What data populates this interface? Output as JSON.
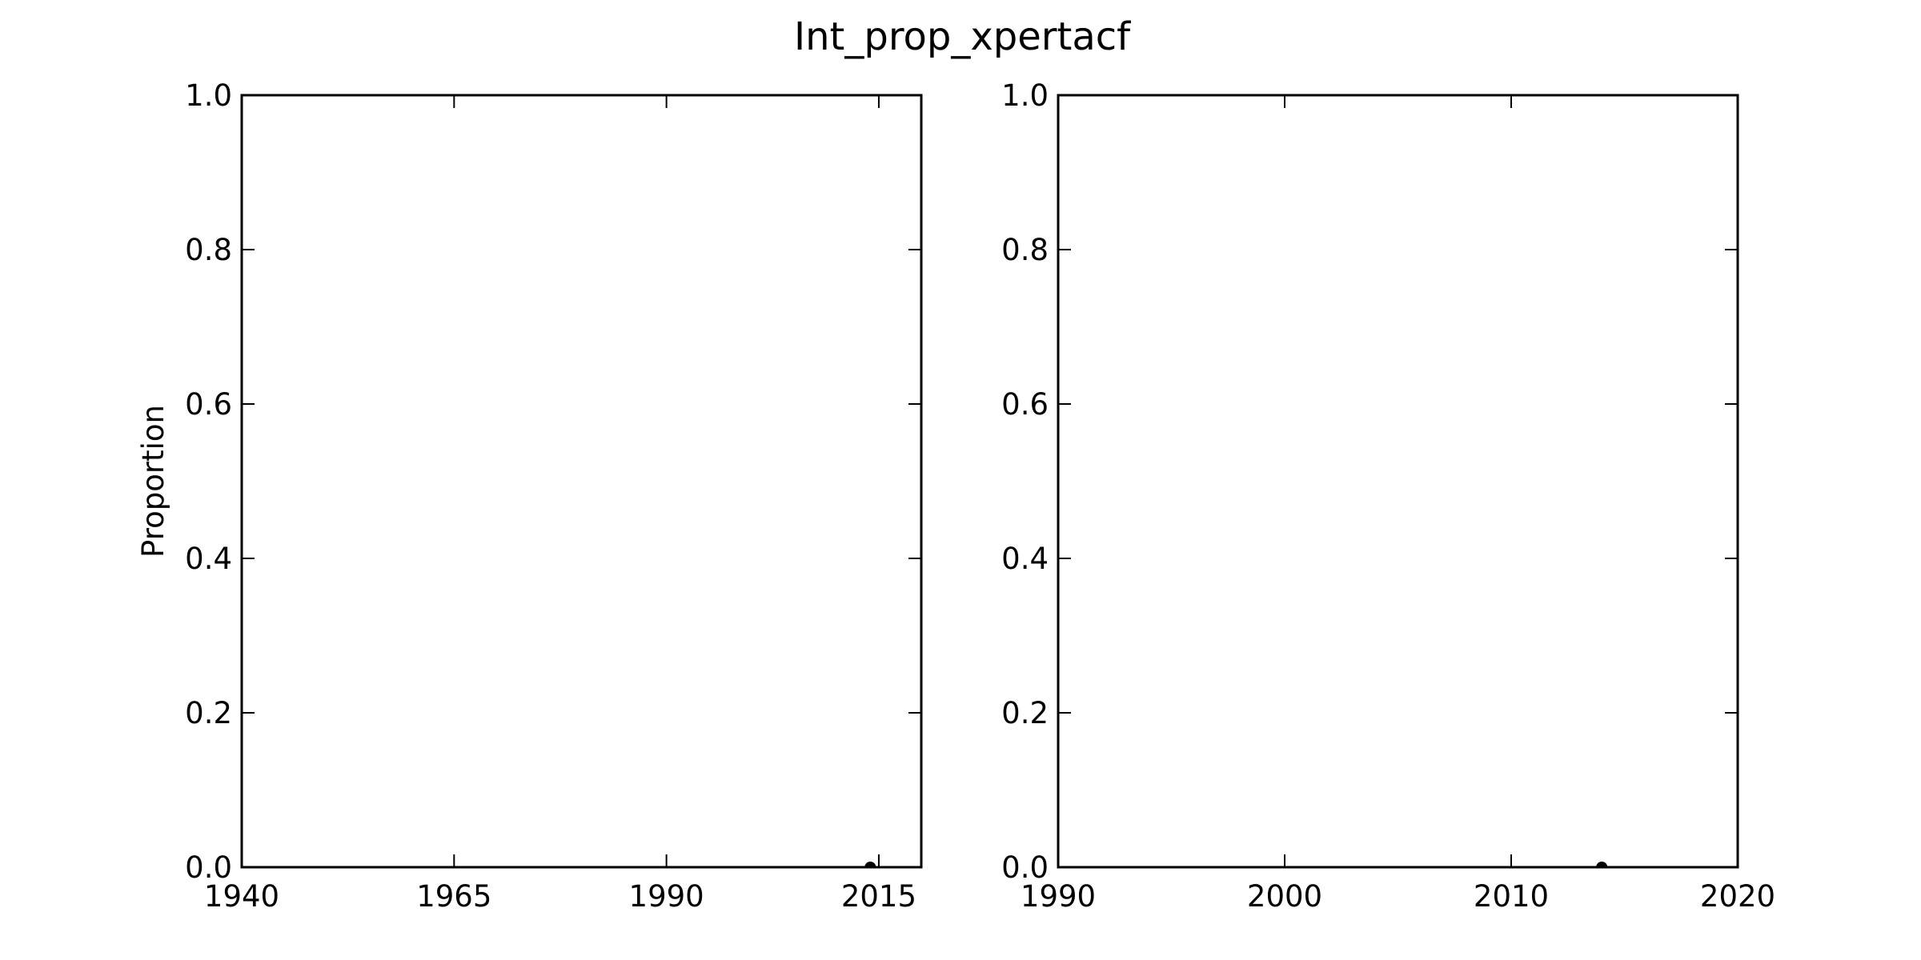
{
  "chart_data": {
    "title": "Int_prop_xpertacf",
    "panels": [
      {
        "type": "scatter",
        "xlim": [
          1940,
          2020
        ],
        "ylim": [
          0.0,
          1.0
        ],
        "xticks": [
          1940,
          1965,
          1990,
          2015
        ],
        "xtick_labels": [
          "1940",
          "1965",
          "1990",
          "2015"
        ],
        "yticks": [
          0.0,
          0.2,
          0.4,
          0.6,
          0.8,
          1.0
        ],
        "ytick_labels": [
          "0.0",
          "0.2",
          "0.4",
          "0.6",
          "0.8",
          "1.0"
        ],
        "xlabel": "",
        "ylabel": "Proportion",
        "grid": false,
        "points": [
          {
            "x": 2014,
            "y": 0.0
          }
        ]
      },
      {
        "type": "scatter",
        "xlim": [
          1990,
          2020
        ],
        "ylim": [
          0.0,
          1.0
        ],
        "xticks": [
          1990,
          2000,
          2010,
          2020
        ],
        "xtick_labels": [
          "1990",
          "2000",
          "2010",
          "2020"
        ],
        "yticks": [
          0.0,
          0.2,
          0.4,
          0.6,
          0.8,
          1.0
        ],
        "ytick_labels": [
          "0.0",
          "0.2",
          "0.4",
          "0.6",
          "0.8",
          "1.0"
        ],
        "xlabel": "",
        "ylabel": "",
        "grid": false,
        "points": [
          {
            "x": 2014,
            "y": 0.0
          }
        ]
      }
    ]
  },
  "colors": {
    "marker": "#000000",
    "axes": "#000000",
    "background": "#ffffff"
  }
}
